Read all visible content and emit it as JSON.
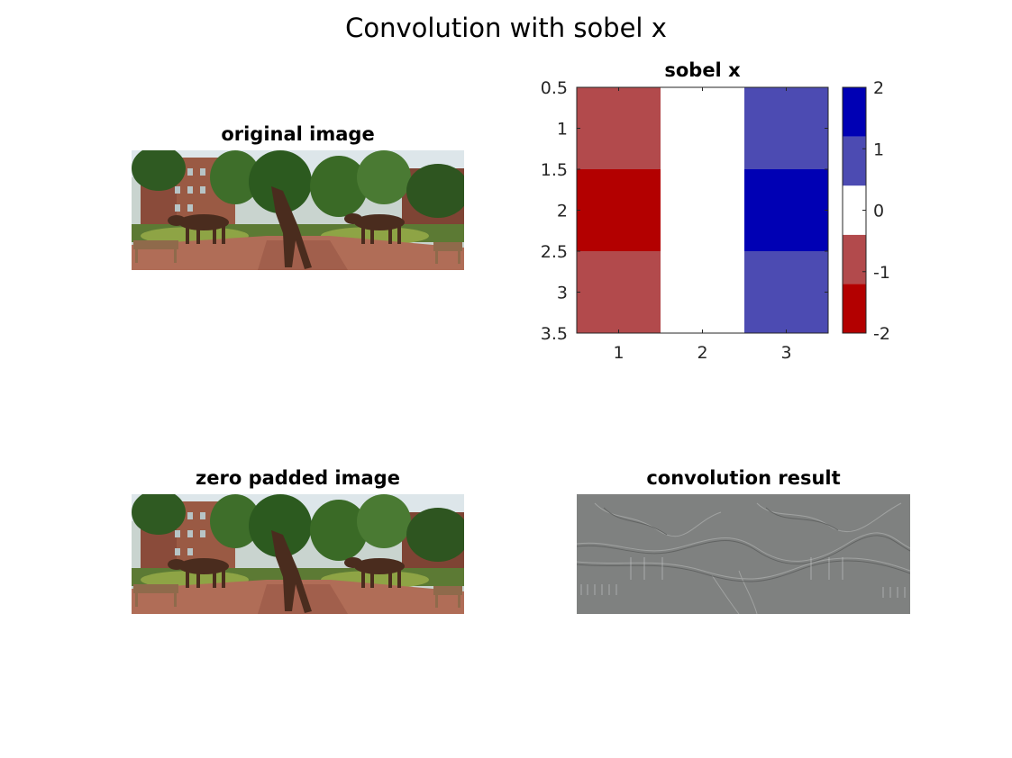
{
  "figure": {
    "title": "Convolution with sobel x",
    "panels": {
      "original": {
        "title": "original image"
      },
      "kernel": {
        "title": "sobel x"
      },
      "padded": {
        "title": "zero padded image"
      },
      "result": {
        "title": "convolution result"
      }
    }
  },
  "chart_data": {
    "type": "heatmap",
    "title": "sobel x",
    "matrix": [
      [
        -1,
        0,
        1
      ],
      [
        -2,
        0,
        2
      ],
      [
        -1,
        0,
        1
      ]
    ],
    "x_ticks": [
      "1",
      "2",
      "3"
    ],
    "y_ticks": [
      "0.5",
      "1",
      "1.5",
      "2",
      "2.5",
      "3",
      "3.5"
    ],
    "xlim": [
      0.5,
      3.5
    ],
    "ylim": [
      0.5,
      3.5
    ],
    "y_direction": "reversed",
    "colorbar": {
      "ticks": [
        "2",
        "1",
        "0",
        "-1",
        "-2"
      ],
      "range": [
        -2,
        2
      ],
      "colors": {
        "-2": "#b30000",
        "-1": "#b24a4c",
        "0": "#ffffff",
        "1": "#4c4bb2",
        "2": "#0000b4"
      }
    }
  }
}
